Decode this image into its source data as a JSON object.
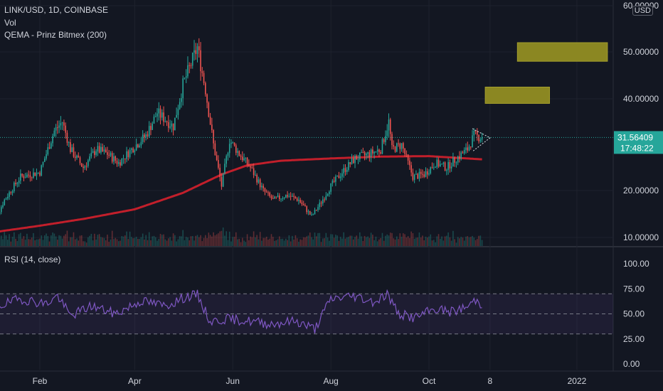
{
  "header": {
    "symbol_line": "LINK/USD, 1D, COINBASE",
    "volume_label": "Vol",
    "indicator_label": "QEMA - Prinz Bitmex (200)",
    "rsi_label": "RSI (14, close)",
    "currency_badge": "USD"
  },
  "price_tag": {
    "price": "31.56409",
    "countdown": "17:48:22"
  },
  "colors": {
    "background": "#131722",
    "up": "#26a69a",
    "down": "#ef5350",
    "ema": "#c21f2b",
    "rsi": "#7e57c2",
    "zone": "#8b8722",
    "price_tag": "#26a69a"
  },
  "chart_data": [
    {
      "type": "candlestick",
      "y_axis_ticks": [
        "60.00000",
        "50.00000",
        "40.00000",
        "20.00000",
        "10.00000"
      ],
      "x_axis_ticks": [
        "Feb",
        "Apr",
        "Jun",
        "Aug",
        "Oct",
        "8",
        "2022"
      ],
      "ylim": [
        8.5,
        60
      ],
      "last_price": 31.56409,
      "close_path": [
        {
          "date": "2021-01-01",
          "close": 11.5
        },
        {
          "date": "2021-01-10",
          "close": 18
        },
        {
          "date": "2021-01-20",
          "close": 23
        },
        {
          "date": "2021-02-01",
          "close": 24
        },
        {
          "date": "2021-02-10",
          "close": 33
        },
        {
          "date": "2021-02-15",
          "close": 35
        },
        {
          "date": "2021-02-20",
          "close": 29
        },
        {
          "date": "2021-02-28",
          "close": 25
        },
        {
          "date": "2021-03-08",
          "close": 29
        },
        {
          "date": "2021-03-15",
          "close": 28
        },
        {
          "date": "2021-03-22",
          "close": 26
        },
        {
          "date": "2021-03-30",
          "close": 29
        },
        {
          "date": "2021-04-08",
          "close": 32
        },
        {
          "date": "2021-04-15",
          "close": 37
        },
        {
          "date": "2021-04-25",
          "close": 34
        },
        {
          "date": "2021-05-01",
          "close": 43
        },
        {
          "date": "2021-05-10",
          "close": 51
        },
        {
          "date": "2021-05-15",
          "close": 42
        },
        {
          "date": "2021-05-20",
          "close": 30
        },
        {
          "date": "2021-05-25",
          "close": 21
        },
        {
          "date": "2021-05-30",
          "close": 31
        },
        {
          "date": "2021-06-05",
          "close": 28
        },
        {
          "date": "2021-06-12",
          "close": 25
        },
        {
          "date": "2021-06-20",
          "close": 20
        },
        {
          "date": "2021-06-26",
          "close": 18
        },
        {
          "date": "2021-07-05",
          "close": 19
        },
        {
          "date": "2021-07-12",
          "close": 18
        },
        {
          "date": "2021-07-20",
          "close": 14.5
        },
        {
          "date": "2021-07-25",
          "close": 17
        },
        {
          "date": "2021-08-01",
          "close": 21
        },
        {
          "date": "2021-08-08",
          "close": 24
        },
        {
          "date": "2021-08-16",
          "close": 27
        },
        {
          "date": "2021-08-25",
          "close": 28
        },
        {
          "date": "2021-09-01",
          "close": 29
        },
        {
          "date": "2021-09-06",
          "close": 35
        },
        {
          "date": "2021-09-08",
          "close": 29
        },
        {
          "date": "2021-09-14",
          "close": 30
        },
        {
          "date": "2021-09-21",
          "close": 23
        },
        {
          "date": "2021-09-28",
          "close": 23.5
        },
        {
          "date": "2021-10-05",
          "close": 26
        },
        {
          "date": "2021-10-12",
          "close": 25
        },
        {
          "date": "2021-10-18",
          "close": 27
        },
        {
          "date": "2021-10-25",
          "close": 29
        },
        {
          "date": "2021-10-29",
          "close": 32
        },
        {
          "date": "2021-11-03",
          "close": 31.5
        }
      ],
      "series": [
        {
          "name": "QEMA - Prinz Bitmex (200)",
          "points": [
            {
              "date": "2021-01-01",
              "value": 11
            },
            {
              "date": "2021-02-01",
              "value": 12.5
            },
            {
              "date": "2021-03-01",
              "value": 14
            },
            {
              "date": "2021-04-01",
              "value": 16
            },
            {
              "date": "2021-05-01",
              "value": 19.5
            },
            {
              "date": "2021-05-25",
              "value": 23.5
            },
            {
              "date": "2021-06-10",
              "value": 25.5
            },
            {
              "date": "2021-07-01",
              "value": 26.5
            },
            {
              "date": "2021-08-01",
              "value": 27
            },
            {
              "date": "2021-09-01",
              "value": 27.4
            },
            {
              "date": "2021-10-01",
              "value": 27.5
            },
            {
              "date": "2021-11-03",
              "value": 26.8
            }
          ]
        }
      ],
      "annotations": [
        {
          "type": "zone",
          "from_date": "2021-11-05",
          "to_date": "2021-12-15",
          "low": 39,
          "high": 42.5
        },
        {
          "type": "zone",
          "from_date": "2021-11-25",
          "to_date": "2022-01-20",
          "low": 48,
          "high": 52
        },
        {
          "type": "triangle",
          "from_date": "2021-10-28",
          "to_date": "2021-11-08",
          "upper_start": 33.5,
          "lower_start": 28.5,
          "apex": 31.5
        }
      ]
    },
    {
      "type": "line",
      "series": [
        {
          "name": "RSI (14, close)"
        }
      ],
      "y_axis_ticks": [
        "100.00",
        "75.00",
        "50.00",
        "25.00",
        "0.00"
      ],
      "ylim": [
        0,
        100
      ],
      "bands": [
        70,
        50,
        30
      ],
      "rsi_path": [
        {
          "date": "2021-01-01",
          "value": 55
        },
        {
          "date": "2021-01-20",
          "value": 65
        },
        {
          "date": "2021-02-05",
          "value": 60
        },
        {
          "date": "2021-02-12",
          "value": 68
        },
        {
          "date": "2021-02-20",
          "value": 48
        },
        {
          "date": "2021-03-05",
          "value": 58
        },
        {
          "date": "2021-03-20",
          "value": 50
        },
        {
          "date": "2021-04-05",
          "value": 63
        },
        {
          "date": "2021-04-20",
          "value": 58
        },
        {
          "date": "2021-05-03",
          "value": 67
        },
        {
          "date": "2021-05-10",
          "value": 69
        },
        {
          "date": "2021-05-18",
          "value": 42
        },
        {
          "date": "2021-05-28",
          "value": 45
        },
        {
          "date": "2021-06-10",
          "value": 43
        },
        {
          "date": "2021-06-25",
          "value": 40
        },
        {
          "date": "2021-07-10",
          "value": 43
        },
        {
          "date": "2021-07-22",
          "value": 35
        },
        {
          "date": "2021-08-01",
          "value": 65
        },
        {
          "date": "2021-08-15",
          "value": 68
        },
        {
          "date": "2021-08-28",
          "value": 62
        },
        {
          "date": "2021-09-05",
          "value": 70
        },
        {
          "date": "2021-09-12",
          "value": 50
        },
        {
          "date": "2021-09-22",
          "value": 46
        },
        {
          "date": "2021-10-05",
          "value": 55
        },
        {
          "date": "2021-10-15",
          "value": 52
        },
        {
          "date": "2021-10-25",
          "value": 57
        },
        {
          "date": "2021-10-30",
          "value": 64
        },
        {
          "date": "2021-11-03",
          "value": 59
        }
      ]
    }
  ]
}
